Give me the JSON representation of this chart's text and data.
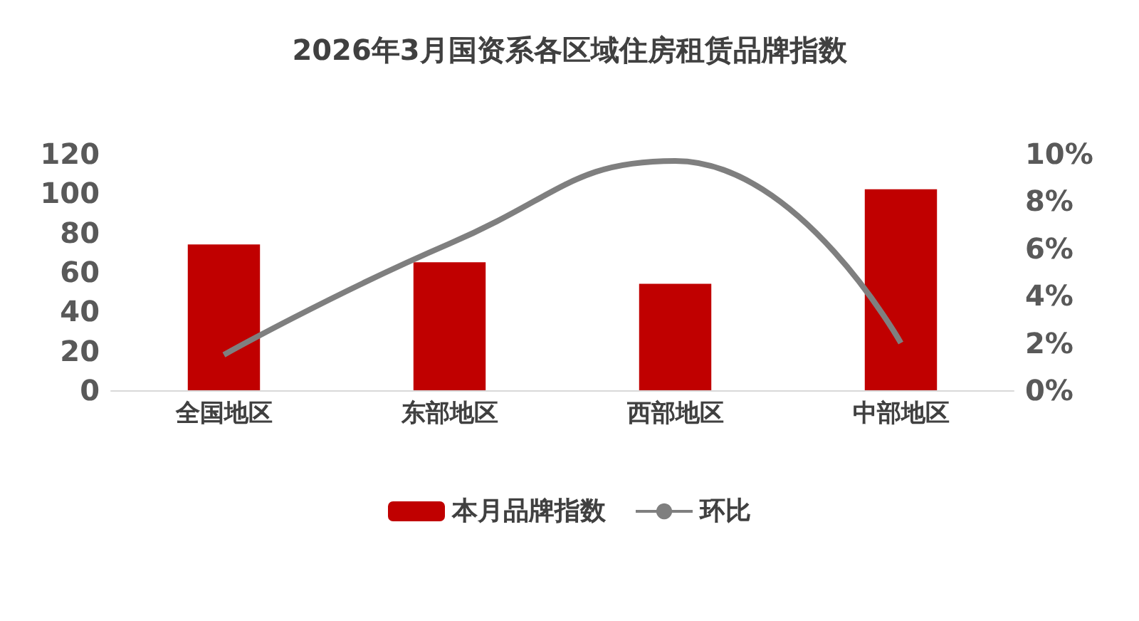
{
  "chart_data": {
    "type": "bar",
    "title": "2026年3月国资系各区域住房租赁品牌指数",
    "categories": [
      "全国地区",
      "东部地区",
      "西部地区",
      "中部地区"
    ],
    "series": [
      {
        "name": "本月品牌指数",
        "color": "#c00000",
        "values": [
          74,
          65,
          54,
          102
        ]
      },
      {
        "name": "环比",
        "type": "line",
        "axis": "y2",
        "color": "#7f7f7f",
        "values": [
          1.5,
          6.2,
          9.7,
          2.0
        ]
      }
    ],
    "ylim": [
      0,
      120
    ],
    "yticks": [
      0,
      20,
      40,
      60,
      80,
      100,
      120
    ],
    "y2lim": [
      0,
      10
    ],
    "y2ticks": [
      {
        "value": 0,
        "label": "0%"
      },
      {
        "value": 2,
        "label": "2%"
      },
      {
        "value": 4,
        "label": "4%"
      },
      {
        "value": 6,
        "label": "6%"
      },
      {
        "value": 8,
        "label": "8%"
      },
      {
        "value": 10,
        "label": "10%"
      }
    ],
    "grid": false,
    "legend": "bottom",
    "marker": "none"
  }
}
